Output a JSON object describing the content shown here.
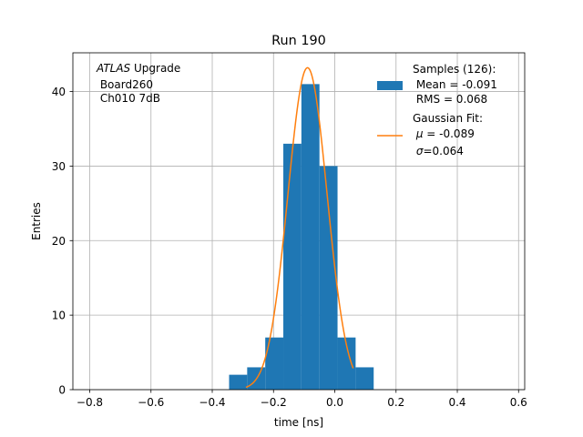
{
  "chart_data": {
    "type": "histogram",
    "title": "Run 190",
    "xlabel": "time [ns]",
    "ylabel": "Entries",
    "xlim": [
      -0.855,
      0.62
    ],
    "ylim": [
      0,
      45.2
    ],
    "grid": true,
    "x_ticks": [
      -0.8,
      -0.6,
      -0.4,
      -0.2,
      0.0,
      0.2,
      0.4,
      0.6
    ],
    "x_tick_labels": [
      "−0.8",
      "−0.6",
      "−0.4",
      "−0.2",
      "0.0",
      "0.2",
      "0.4",
      "0.6"
    ],
    "y_ticks": [
      0,
      10,
      20,
      30,
      40
    ],
    "y_tick_labels": [
      "0",
      "10",
      "20",
      "30",
      "40"
    ],
    "histogram": {
      "color": "#1f77b4",
      "bin_edges": [
        -0.345,
        -0.286,
        -0.227,
        -0.168,
        -0.109,
        -0.05,
        0.009,
        0.068,
        0.127
      ],
      "counts": [
        2,
        3,
        7,
        33,
        41,
        30,
        7,
        3
      ]
    },
    "fit": {
      "color": "#ff7f0e",
      "amplitude": 43.2,
      "mu": -0.089,
      "sigma": 0.064,
      "x_range": [
        -0.29,
        0.06
      ]
    },
    "annotation": {
      "italic": "ATLAS",
      "rest": " Upgrade",
      "line2": " Board260",
      "line3": " Ch010 7dB"
    },
    "legend": {
      "location": "top-right",
      "hist_lines": [
        "Samples (126):",
        " Mean = -0.091",
        " RMS = 0.068"
      ],
      "fit_title": "Gaussian Fit:",
      "fit_mu_sym": "μ",
      "fit_mu_val": " = -0.089",
      "fit_sigma_sym": "σ",
      "fit_sigma_val": "=0.064"
    }
  }
}
